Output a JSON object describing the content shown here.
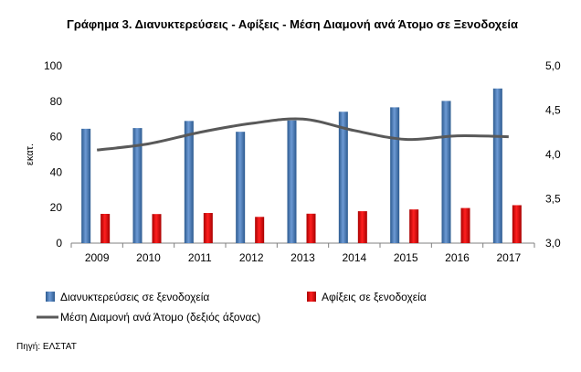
{
  "chart_data": {
    "type": "bar",
    "title": "Γράφημα 3.  Διανυκτερεύσεις - Αφίξεις - Μέση Διαμονή ανά Άτομο σε Ξενοδοχεία",
    "ylabel": "εκατ.",
    "y2label": "",
    "categories": [
      "2009",
      "2010",
      "2011",
      "2012",
      "2013",
      "2014",
      "2015",
      "2016",
      "2017"
    ],
    "ylim": [
      0,
      100
    ],
    "yticks": [
      0,
      20,
      40,
      60,
      80,
      100
    ],
    "y2lim": [
      3.0,
      5.0
    ],
    "y2ticks": [
      "3,0",
      "3,5",
      "4,0",
      "4,5",
      "5,0"
    ],
    "grid": false,
    "legend_position": "bottom",
    "series": [
      {
        "name": "Διανυκτερεύσεις σε ξενοδοχεία",
        "type": "bar",
        "axis": "left",
        "color": "#4f81bd",
        "values": [
          64.5,
          64.9,
          68.9,
          62.8,
          69.2,
          74.1,
          76.6,
          80.2,
          87.2
        ]
      },
      {
        "name": "Αφίξεις σε ξενοδοχεία",
        "type": "bar",
        "axis": "left",
        "color": "#e31a1c",
        "values": [
          16.5,
          16.4,
          17.0,
          14.8,
          16.6,
          18.0,
          19.0,
          19.8,
          21.4
        ]
      },
      {
        "name": "Μέση Διαμονή ανά Άτομο (δεξιός άξονας)",
        "type": "line",
        "axis": "right",
        "color": "#595959",
        "values": [
          4.05,
          4.12,
          4.25,
          4.35,
          4.4,
          4.27,
          4.17,
          4.21,
          4.2
        ]
      }
    ]
  },
  "source": "Πηγή: ΕΛΣΤΑΤ"
}
